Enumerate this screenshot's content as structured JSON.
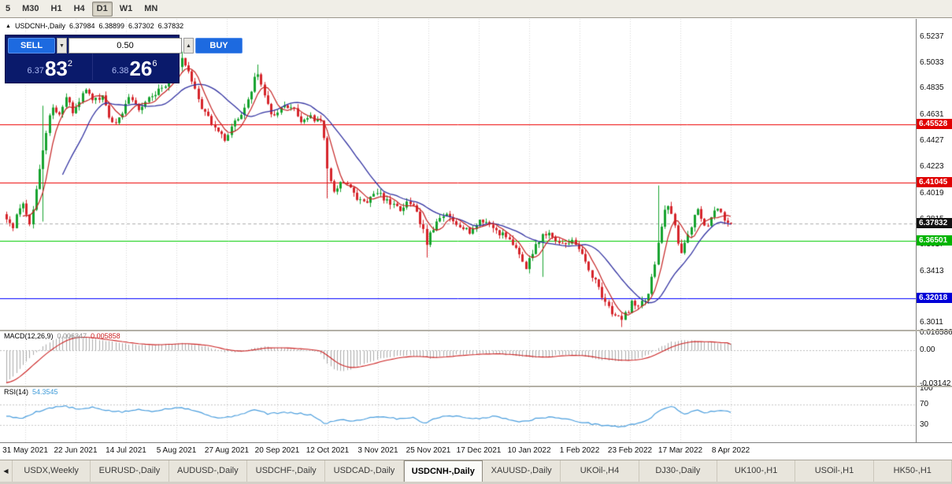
{
  "toolbar": {
    "timeframes": [
      {
        "label": "5",
        "active": false
      },
      {
        "label": "M30",
        "active": false
      },
      {
        "label": "H1",
        "active": false
      },
      {
        "label": "H4",
        "active": false
      },
      {
        "label": "D1",
        "active": true
      },
      {
        "label": "W1",
        "active": false
      },
      {
        "label": "MN",
        "active": false
      }
    ]
  },
  "chart_header": {
    "symbol_label": "USDCNH-,Daily",
    "open": "6.37984",
    "high": "6.38899",
    "low": "6.37302",
    "close": "6.37832"
  },
  "trade_widget": {
    "sell_label": "SELL",
    "buy_label": "BUY",
    "lot_value": "0.50",
    "sell_price_main": "6.37",
    "sell_price_big": "83",
    "sell_price_sup": "2",
    "buy_price_main": "6.38",
    "buy_price_big": "26",
    "buy_price_sup": "6",
    "spin_down_icon": "▼",
    "spin_up_icon": "▲"
  },
  "panels": {
    "macd_name": "MACD(12,26,9)",
    "macd_value": "0.006347",
    "macd_signal": "0.005858",
    "macd_ticks": [
      "0.016586",
      "0.00",
      "-0.03142"
    ],
    "rsi_name": "RSI(14)",
    "rsi_value": "54.3545",
    "rsi_ticks": [
      "100",
      "70",
      "30"
    ]
  },
  "price_axis_ticks": [
    "6.5237",
    "6.5033",
    "6.4835",
    "6.4631",
    "6.4427",
    "6.4223",
    "6.4019",
    "6.3815",
    "6.3617",
    "6.3413",
    "6.3209",
    "6.3011"
  ],
  "date_axis": [
    "31 May 2021",
    "22 Jun 2021",
    "14 Jul 2021",
    "5 Aug 2021",
    "27 Aug 2021",
    "20 Sep 2021",
    "12 Oct 2021",
    "3 Nov 2021",
    "25 Nov 2021",
    "17 Dec 2021",
    "10 Jan 2022",
    "1 Feb 2022",
    "23 Feb 2022",
    "17 Mar 2022",
    "8 Apr 2022"
  ],
  "tabs": {
    "scroll_left_icon": "◀",
    "items": [
      {
        "label": "USDX,Weekly",
        "active": false
      },
      {
        "label": "EURUSD-,Daily",
        "active": false
      },
      {
        "label": "AUDUSD-,Daily",
        "active": false
      },
      {
        "label": "USDCHF-,Daily",
        "active": false
      },
      {
        "label": "USDCAD-,Daily",
        "active": false
      },
      {
        "label": "USDCNH-,Daily",
        "active": true
      },
      {
        "label": "XAUUSD-,Daily",
        "active": false
      },
      {
        "label": "UKOil-,H4",
        "active": false
      },
      {
        "label": "DJ30-,Daily",
        "active": false
      },
      {
        "label": "UK100-,H1",
        "active": false
      },
      {
        "label": "USOil-,H1",
        "active": false
      },
      {
        "label": "HK50-,H1",
        "active": false
      }
    ]
  },
  "chart_data": {
    "type": "candlestick",
    "symbol": "USDCNH-",
    "timeframe": "Daily",
    "current_ohlc": {
      "open": 6.37984,
      "high": 6.38899,
      "low": 6.37302,
      "close": 6.37832
    },
    "colors": {
      "up": "#17a32f",
      "down": "#d6252b",
      "ma_fast": "#c62222",
      "ma_slow": "#3333a2",
      "macd_hist": "#ababab",
      "macd_signal": "#cc2222",
      "rsi_line": "#4a9ede",
      "grid": "#d9d9d9"
    },
    "price": {
      "y_min": 6.2959,
      "y_max": 6.5375,
      "candle_count": 220,
      "ma_fast_period": 6,
      "ma_slow_period": 18,
      "path_anchors": [
        [
          0.0,
          6.383
        ],
        [
          0.008,
          6.372
        ],
        [
          0.02,
          6.396
        ],
        [
          0.032,
          6.38
        ],
        [
          0.042,
          6.405
        ],
        [
          0.051,
          6.438
        ],
        [
          0.062,
          6.47
        ],
        [
          0.072,
          6.46
        ],
        [
          0.082,
          6.477
        ],
        [
          0.092,
          6.464
        ],
        [
          0.102,
          6.477
        ],
        [
          0.112,
          6.482
        ],
        [
          0.122,
          6.473
        ],
        [
          0.132,
          6.479
        ],
        [
          0.142,
          6.462
        ],
        [
          0.152,
          6.455
        ],
        [
          0.162,
          6.469
        ],
        [
          0.172,
          6.477
        ],
        [
          0.182,
          6.467
        ],
        [
          0.192,
          6.473
        ],
        [
          0.202,
          6.479
        ],
        [
          0.212,
          6.482
        ],
        [
          0.222,
          6.487
        ],
        [
          0.232,
          6.497
        ],
        [
          0.242,
          6.505
        ],
        [
          0.252,
          6.496
        ],
        [
          0.262,
          6.481
        ],
        [
          0.272,
          6.466
        ],
        [
          0.282,
          6.458
        ],
        [
          0.292,
          6.449
        ],
        [
          0.302,
          6.443
        ],
        [
          0.312,
          6.455
        ],
        [
          0.322,
          6.461
        ],
        [
          0.332,
          6.47
        ],
        [
          0.342,
          6.49
        ],
        [
          0.348,
          6.497
        ],
        [
          0.356,
          6.476
        ],
        [
          0.366,
          6.464
        ],
        [
          0.376,
          6.466
        ],
        [
          0.386,
          6.47
        ],
        [
          0.396,
          6.468
        ],
        [
          0.406,
          6.458
        ],
        [
          0.416,
          6.462
        ],
        [
          0.426,
          6.459
        ],
        [
          0.436,
          6.457
        ],
        [
          0.444,
          6.417
        ],
        [
          0.452,
          6.404
        ],
        [
          0.462,
          6.412
        ],
        [
          0.472,
          6.407
        ],
        [
          0.482,
          6.399
        ],
        [
          0.492,
          6.395
        ],
        [
          0.502,
          6.398
        ],
        [
          0.512,
          6.402
        ],
        [
          0.522,
          6.398
        ],
        [
          0.532,
          6.392
        ],
        [
          0.542,
          6.389
        ],
        [
          0.552,
          6.394
        ],
        [
          0.562,
          6.39
        ],
        [
          0.572,
          6.379
        ],
        [
          0.58,
          6.363
        ],
        [
          0.588,
          6.374
        ],
        [
          0.598,
          6.381
        ],
        [
          0.608,
          6.386
        ],
        [
          0.618,
          6.381
        ],
        [
          0.628,
          6.377
        ],
        [
          0.638,
          6.372
        ],
        [
          0.648,
          6.377
        ],
        [
          0.658,
          6.381
        ],
        [
          0.668,
          6.377
        ],
        [
          0.678,
          6.372
        ],
        [
          0.688,
          6.37
        ],
        [
          0.698,
          6.364
        ],
        [
          0.708,
          6.353
        ],
        [
          0.718,
          6.344
        ],
        [
          0.728,
          6.36
        ],
        [
          0.738,
          6.368
        ],
        [
          0.748,
          6.371
        ],
        [
          0.758,
          6.366
        ],
        [
          0.768,
          6.362
        ],
        [
          0.778,
          6.366
        ],
        [
          0.788,
          6.36
        ],
        [
          0.798,
          6.35
        ],
        [
          0.808,
          6.338
        ],
        [
          0.818,
          6.327
        ],
        [
          0.828,
          6.317
        ],
        [
          0.838,
          6.308
        ],
        [
          0.848,
          6.303
        ],
        [
          0.856,
          6.309
        ],
        [
          0.864,
          6.317
        ],
        [
          0.874,
          6.314
        ],
        [
          0.884,
          6.322
        ],
        [
          0.892,
          6.338
        ],
        [
          0.9,
          6.366
        ],
        [
          0.907,
          6.387
        ],
        [
          0.913,
          6.394
        ],
        [
          0.92,
          6.381
        ],
        [
          0.927,
          6.363
        ],
        [
          0.933,
          6.356
        ],
        [
          0.94,
          6.369
        ],
        [
          0.947,
          6.381
        ],
        [
          0.953,
          6.39
        ],
        [
          0.96,
          6.382
        ],
        [
          0.966,
          6.374
        ],
        [
          0.972,
          6.381
        ],
        [
          0.979,
          6.388
        ],
        [
          0.985,
          6.391
        ],
        [
          0.991,
          6.383
        ],
        [
          1.0,
          6.378
        ]
      ],
      "spikes": [
        [
          0.051,
          6.47,
          6.38
        ],
        [
          0.242,
          6.512,
          null
        ],
        [
          0.348,
          6.502,
          null
        ],
        [
          0.444,
          null,
          6.398
        ],
        [
          0.58,
          null,
          6.352
        ],
        [
          0.74,
          null,
          6.337
        ],
        [
          0.848,
          null,
          6.298
        ],
        [
          0.9,
          6.408,
          null
        ]
      ]
    },
    "levels": [
      {
        "value": 6.45528,
        "label": "6.45528",
        "line_color": "#ee0000",
        "badge_color": "#e00000",
        "dashed": false
      },
      {
        "value": 6.41045,
        "label": "6.41045",
        "line_color": "#ee0000",
        "badge_color": "#e00000",
        "dashed": false
      },
      {
        "value": 6.37832,
        "label": "6.37832",
        "line_color": "#b0b0b0",
        "badge_color": "#111111",
        "dashed": true
      },
      {
        "value": 6.36501,
        "label": "6.36501",
        "line_color": "#00cc00",
        "badge_color": "#00b400",
        "dashed": false
      },
      {
        "value": 6.32018,
        "label": "6.32018",
        "line_color": "#0000ff",
        "badge_color": "#0000d8",
        "dashed": false
      }
    ],
    "macd": {
      "value": 0.006347,
      "signal": 0.005858,
      "y_min": -0.033,
      "y_max": 0.018,
      "anchors": [
        [
          0.0,
          -0.03
        ],
        [
          0.012,
          -0.022
        ],
        [
          0.025,
          -0.012
        ],
        [
          0.04,
          -0.002
        ],
        [
          0.055,
          0.006
        ],
        [
          0.07,
          0.012
        ],
        [
          0.085,
          0.015
        ],
        [
          0.1,
          0.014
        ],
        [
          0.12,
          0.011
        ],
        [
          0.14,
          0.0085
        ],
        [
          0.16,
          0.0065
        ],
        [
          0.18,
          0.0055
        ],
        [
          0.2,
          0.005
        ],
        [
          0.22,
          0.0058
        ],
        [
          0.24,
          0.0068
        ],
        [
          0.26,
          0.0055
        ],
        [
          0.28,
          0.003
        ],
        [
          0.3,
          -0.001
        ],
        [
          0.32,
          -0.0015
        ],
        [
          0.34,
          0.002
        ],
        [
          0.355,
          0.0035
        ],
        [
          0.375,
          0.0022
        ],
        [
          0.395,
          0.0015
        ],
        [
          0.415,
          0.0005
        ],
        [
          0.432,
          -0.0015
        ],
        [
          0.445,
          -0.014
        ],
        [
          0.458,
          -0.02
        ],
        [
          0.47,
          -0.019
        ],
        [
          0.485,
          -0.015
        ],
        [
          0.5,
          -0.011
        ],
        [
          0.515,
          -0.008
        ],
        [
          0.53,
          -0.006
        ],
        [
          0.55,
          -0.0045
        ],
        [
          0.57,
          -0.0055
        ],
        [
          0.585,
          -0.0075
        ],
        [
          0.6,
          -0.006
        ],
        [
          0.62,
          -0.0042
        ],
        [
          0.64,
          -0.0035
        ],
        [
          0.66,
          -0.0028
        ],
        [
          0.68,
          -0.0032
        ],
        [
          0.7,
          -0.0048
        ],
        [
          0.72,
          -0.0062
        ],
        [
          0.74,
          -0.0065
        ],
        [
          0.76,
          -0.0045
        ],
        [
          0.78,
          -0.0038
        ],
        [
          0.8,
          -0.006
        ],
        [
          0.82,
          -0.0085
        ],
        [
          0.84,
          -0.01
        ],
        [
          0.86,
          -0.0092
        ],
        [
          0.875,
          -0.007
        ],
        [
          0.89,
          -0.002
        ],
        [
          0.905,
          0.004
        ],
        [
          0.92,
          0.0085
        ],
        [
          0.935,
          0.01
        ],
        [
          0.95,
          0.0092
        ],
        [
          0.965,
          0.0082
        ],
        [
          0.98,
          0.0072
        ],
        [
          1.0,
          0.00635
        ]
      ]
    },
    "rsi": {
      "value": 54.3545,
      "period": 14,
      "y_min": -3,
      "y_max": 103,
      "levels": [
        70,
        30
      ],
      "anchors": [
        [
          0.0,
          48
        ],
        [
          0.02,
          42
        ],
        [
          0.04,
          55
        ],
        [
          0.06,
          63
        ],
        [
          0.08,
          67
        ],
        [
          0.1,
          60
        ],
        [
          0.12,
          64
        ],
        [
          0.14,
          58
        ],
        [
          0.16,
          55
        ],
        [
          0.18,
          60
        ],
        [
          0.2,
          57
        ],
        [
          0.22,
          61
        ],
        [
          0.24,
          65
        ],
        [
          0.26,
          58
        ],
        [
          0.28,
          48
        ],
        [
          0.3,
          43
        ],
        [
          0.32,
          50
        ],
        [
          0.345,
          60
        ],
        [
          0.36,
          52
        ],
        [
          0.38,
          54
        ],
        [
          0.4,
          53
        ],
        [
          0.42,
          50
        ],
        [
          0.44,
          33
        ],
        [
          0.46,
          41
        ],
        [
          0.48,
          38
        ],
        [
          0.5,
          44
        ],
        [
          0.52,
          47
        ],
        [
          0.54,
          42
        ],
        [
          0.56,
          45
        ],
        [
          0.578,
          34
        ],
        [
          0.59,
          42
        ],
        [
          0.61,
          49
        ],
        [
          0.63,
          45
        ],
        [
          0.65,
          42
        ],
        [
          0.67,
          47
        ],
        [
          0.69,
          43
        ],
        [
          0.71,
          36
        ],
        [
          0.73,
          42
        ],
        [
          0.75,
          46
        ],
        [
          0.77,
          42
        ],
        [
          0.79,
          37
        ],
        [
          0.81,
          32
        ],
        [
          0.83,
          29
        ],
        [
          0.85,
          27
        ],
        [
          0.87,
          33
        ],
        [
          0.885,
          40
        ],
        [
          0.9,
          55
        ],
        [
          0.91,
          63
        ],
        [
          0.92,
          68
        ],
        [
          0.928,
          58
        ],
        [
          0.935,
          50
        ],
        [
          0.945,
          56
        ],
        [
          0.955,
          60
        ],
        [
          0.965,
          53
        ],
        [
          0.975,
          57
        ],
        [
          0.985,
          59
        ],
        [
          1.0,
          54.35
        ]
      ]
    }
  }
}
